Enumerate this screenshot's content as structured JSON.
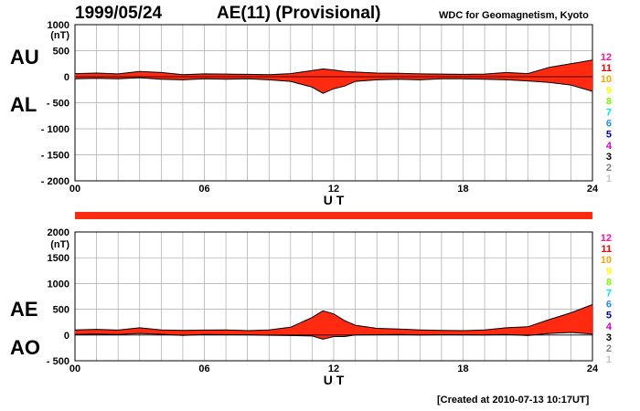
{
  "header": {
    "date": "1999/05/24",
    "title": "AE(11) (Provisional)",
    "source": "WDC for Geomagnetism, Kyoto"
  },
  "footer": {
    "created": "[Created at 2010-07-13 10:17UT]"
  },
  "colors": {
    "fill": "#ff2a10",
    "line": "#000000",
    "grid": "#aaaaaa",
    "bar": "#ff2a10"
  },
  "station_legend": [
    {
      "label": "12",
      "color": "#ff1493"
    },
    {
      "label": "11",
      "color": "#ff0000"
    },
    {
      "label": "10",
      "color": "#ffa500"
    },
    {
      "label": "9",
      "color": "#ffff00"
    },
    {
      "label": "8",
      "color": "#7fff00"
    },
    {
      "label": "7",
      "color": "#00e5ee"
    },
    {
      "label": "6",
      "color": "#1e90ff"
    },
    {
      "label": "5",
      "color": "#0000cd"
    },
    {
      "label": "4",
      "color": "#d000d0"
    },
    {
      "label": "3",
      "color": "#000000"
    },
    {
      "label": "2",
      "color": "#808080"
    },
    {
      "label": "1",
      "color": "#c8c8c8"
    }
  ],
  "chart_data": [
    {
      "type": "area",
      "panel": "AU/AL",
      "upper_label": "AU",
      "lower_label": "AL",
      "unit": "(nT)",
      "xlabel": "U T",
      "xlim": [
        0,
        24
      ],
      "ylim": [
        -2000,
        1000
      ],
      "xticks": [
        "00",
        "06",
        "12",
        "18",
        "24"
      ],
      "yticks": [
        "1000",
        "500",
        "0",
        "- 500",
        "- 1000",
        "- 1500",
        "- 2000"
      ],
      "x": [
        0,
        1,
        2,
        3,
        4,
        5,
        6,
        7,
        8,
        9,
        10,
        11,
        11.5,
        12,
        12.5,
        13,
        14,
        15,
        16,
        17,
        18,
        19,
        20,
        21,
        22,
        23,
        24
      ],
      "series": [
        {
          "name": "AU",
          "values": [
            60,
            70,
            55,
            100,
            80,
            40,
            55,
            50,
            45,
            40,
            60,
            120,
            150,
            130,
            100,
            90,
            70,
            65,
            55,
            50,
            45,
            50,
            80,
            60,
            180,
            250,
            320
          ]
        },
        {
          "name": "AL",
          "values": [
            -40,
            -30,
            -40,
            -20,
            -50,
            -60,
            -40,
            -50,
            -40,
            -60,
            -90,
            -200,
            -320,
            -230,
            -180,
            -90,
            -60,
            -50,
            -60,
            -40,
            -40,
            -50,
            -60,
            -80,
            -110,
            -160,
            -280
          ]
        }
      ]
    },
    {
      "type": "area",
      "panel": "AE/AO",
      "upper_label": "AE",
      "lower_label": "AO",
      "unit": "(nT)",
      "xlabel": "U T",
      "xlim": [
        0,
        24
      ],
      "ylim": [
        -500,
        2000
      ],
      "xticks": [
        "00",
        "06",
        "12",
        "18",
        "24"
      ],
      "yticks": [
        "2000",
        "1500",
        "1000",
        "500",
        "0",
        "- 500"
      ],
      "x": [
        0,
        1,
        2,
        3,
        4,
        5,
        6,
        7,
        8,
        9,
        10,
        11,
        11.5,
        12,
        12.5,
        13,
        14,
        15,
        16,
        17,
        18,
        19,
        20,
        21,
        22,
        23,
        24
      ],
      "series": [
        {
          "name": "AE",
          "values": [
            100,
            110,
            95,
            140,
            100,
            90,
            95,
            100,
            85,
            100,
            150,
            340,
            470,
            410,
            280,
            190,
            130,
            115,
            100,
            90,
            85,
            100,
            140,
            160,
            300,
            430,
            590
          ]
        },
        {
          "name": "AO",
          "values": [
            10,
            20,
            8,
            30,
            15,
            -8,
            8,
            5,
            3,
            -5,
            -10,
            -20,
            -80,
            -30,
            -30,
            0,
            5,
            8,
            0,
            5,
            3,
            0,
            10,
            -10,
            30,
            50,
            20
          ]
        }
      ]
    }
  ]
}
